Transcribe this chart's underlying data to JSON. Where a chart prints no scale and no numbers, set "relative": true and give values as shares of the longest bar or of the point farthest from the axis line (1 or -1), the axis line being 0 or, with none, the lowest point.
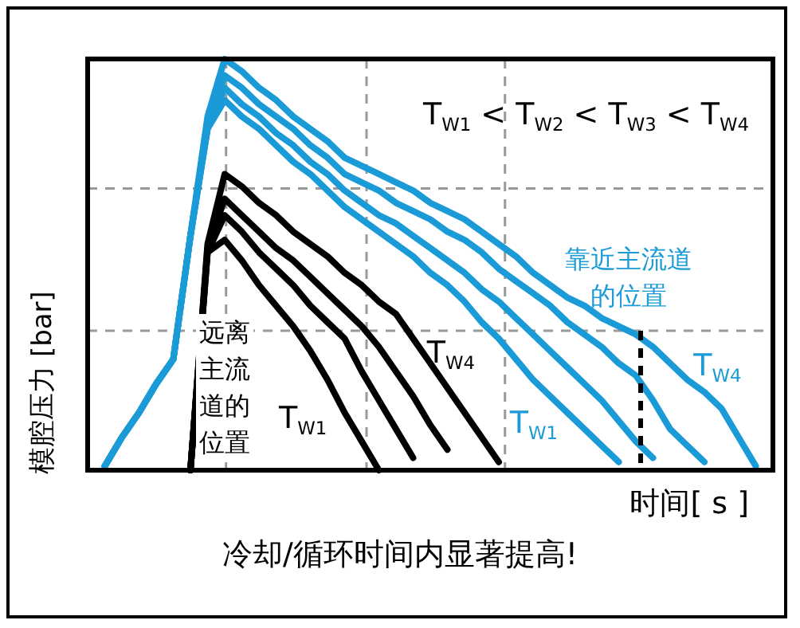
{
  "chart_data": {
    "type": "line",
    "relative": true,
    "xlabel": "时间[ s ]",
    "ylabel": "模腔压力 [bar]",
    "grid": true,
    "line_style": "solid",
    "marker": "none",
    "categories": [
      null,
      null,
      null,
      null,
      null,
      null,
      null,
      null,
      null,
      null,
      null,
      null,
      null,
      null,
      null,
      null,
      null,
      null,
      null,
      null,
      null,
      null,
      null,
      null,
      null,
      null,
      null,
      null,
      null,
      null,
      null,
      null,
      null,
      null,
      null,
      null,
      null,
      null,
      null,
      null,
      null
    ],
    "series": [
      {
        "color": "#1a9ad6",
        "values": [
          null,
          0.01,
          0.08,
          0.14,
          0.21,
          0.27,
          0.57,
          0.86,
          1.0,
          0.97,
          0.93,
          0.9,
          0.86,
          0.83,
          0.8,
          0.76,
          0.74,
          0.72,
          0.7,
          0.68,
          0.65,
          0.63,
          0.61,
          0.58,
          0.55,
          0.52,
          0.48,
          0.45,
          0.42,
          0.4,
          0.37,
          0.35,
          0.33,
          0.3,
          0.26,
          0.22,
          0.19,
          0.15,
          0.08,
          0.01,
          null
        ]
      },
      {
        "color": "#1a9ad6",
        "values": [
          null,
          0.01,
          0.08,
          0.14,
          0.21,
          0.27,
          0.57,
          0.84,
          0.96,
          0.93,
          0.89,
          0.86,
          0.83,
          0.79,
          0.76,
          0.72,
          0.7,
          0.68,
          0.65,
          0.63,
          0.61,
          0.58,
          0.56,
          0.53,
          0.49,
          0.46,
          0.43,
          0.4,
          0.36,
          0.33,
          0.3,
          0.26,
          0.23,
          0.17,
          0.1,
          0.06,
          0.02,
          null,
          null,
          null,
          null
        ]
      },
      {
        "color": "#1a9ad6",
        "values": [
          null,
          0.01,
          0.08,
          0.14,
          0.21,
          0.27,
          0.57,
          0.83,
          0.93,
          0.89,
          0.86,
          0.82,
          0.79,
          0.75,
          0.72,
          0.68,
          0.65,
          0.62,
          0.6,
          0.57,
          0.54,
          0.51,
          0.48,
          0.44,
          0.41,
          0.37,
          0.33,
          0.29,
          0.25,
          0.21,
          0.17,
          0.12,
          0.07,
          0.03,
          null,
          null,
          null,
          null,
          null,
          null,
          null
        ]
      },
      {
        "color": "#1a9ad6",
        "values": [
          null,
          0.01,
          0.08,
          0.14,
          0.21,
          0.27,
          0.57,
          0.83,
          0.9,
          0.86,
          0.83,
          0.79,
          0.75,
          0.72,
          0.68,
          0.64,
          0.61,
          0.58,
          0.55,
          0.52,
          0.48,
          0.45,
          0.41,
          0.36,
          0.32,
          0.27,
          0.22,
          0.18,
          0.14,
          0.1,
          0.06,
          0.02,
          null,
          null,
          null,
          null,
          null,
          null,
          null,
          null,
          null
        ]
      },
      {
        "color": "#000000",
        "values": [
          null,
          null,
          null,
          null,
          null,
          null,
          0,
          0.55,
          0.72,
          0.69,
          0.65,
          0.62,
          0.58,
          0.55,
          0.52,
          0.48,
          0.45,
          0.41,
          0.38,
          0.32,
          0.26,
          0.2,
          0.14,
          0.08,
          0.02,
          null,
          null,
          null,
          null,
          null,
          null,
          null,
          null,
          null,
          null,
          null,
          null,
          null,
          null,
          null,
          null
        ]
      },
      {
        "color": "#000000",
        "values": [
          null,
          null,
          null,
          null,
          null,
          null,
          0,
          0.54,
          0.66,
          0.62,
          0.58,
          0.54,
          0.51,
          0.47,
          0.43,
          0.39,
          0.35,
          0.3,
          0.24,
          0.18,
          0.11,
          0.05,
          null,
          null,
          null,
          null,
          null,
          null,
          null,
          null,
          null,
          null,
          null,
          null,
          null,
          null,
          null,
          null,
          null,
          null,
          null
        ]
      },
      {
        "color": "#000000",
        "values": [
          null,
          null,
          null,
          null,
          null,
          null,
          0,
          0.53,
          0.62,
          0.58,
          0.53,
          0.49,
          0.45,
          0.4,
          0.36,
          0.32,
          0.24,
          0.17,
          0.1,
          0.03,
          null,
          null,
          null,
          null,
          null,
          null,
          null,
          null,
          null,
          null,
          null,
          null,
          null,
          null,
          null,
          null,
          null,
          null,
          null,
          null,
          null
        ]
      },
      {
        "color": "#000000",
        "values": [
          null,
          null,
          null,
          null,
          null,
          null,
          0,
          0.53,
          0.56,
          0.51,
          0.45,
          0.4,
          0.35,
          0.29,
          0.22,
          0.14,
          0.07,
          0,
          null,
          null,
          null,
          null,
          null,
          null,
          null,
          null,
          null,
          null,
          null,
          null,
          null,
          null,
          null,
          null,
          null,
          null,
          null,
          null,
          null,
          null,
          null
        ]
      }
    ],
    "annotations": [
      "T$_{W1}$ < T$_{W2}$ < T$_{W3}$ < T$_{W4}$",
      "远离主流道的位置",
      "T$_{W1}$",
      "T$_{W4}$",
      "T$_{W1}$",
      "靠近主流道的位置",
      "T$_{W4}$",
      "冷却/循环时间内显著提高!"
    ]
  }
}
